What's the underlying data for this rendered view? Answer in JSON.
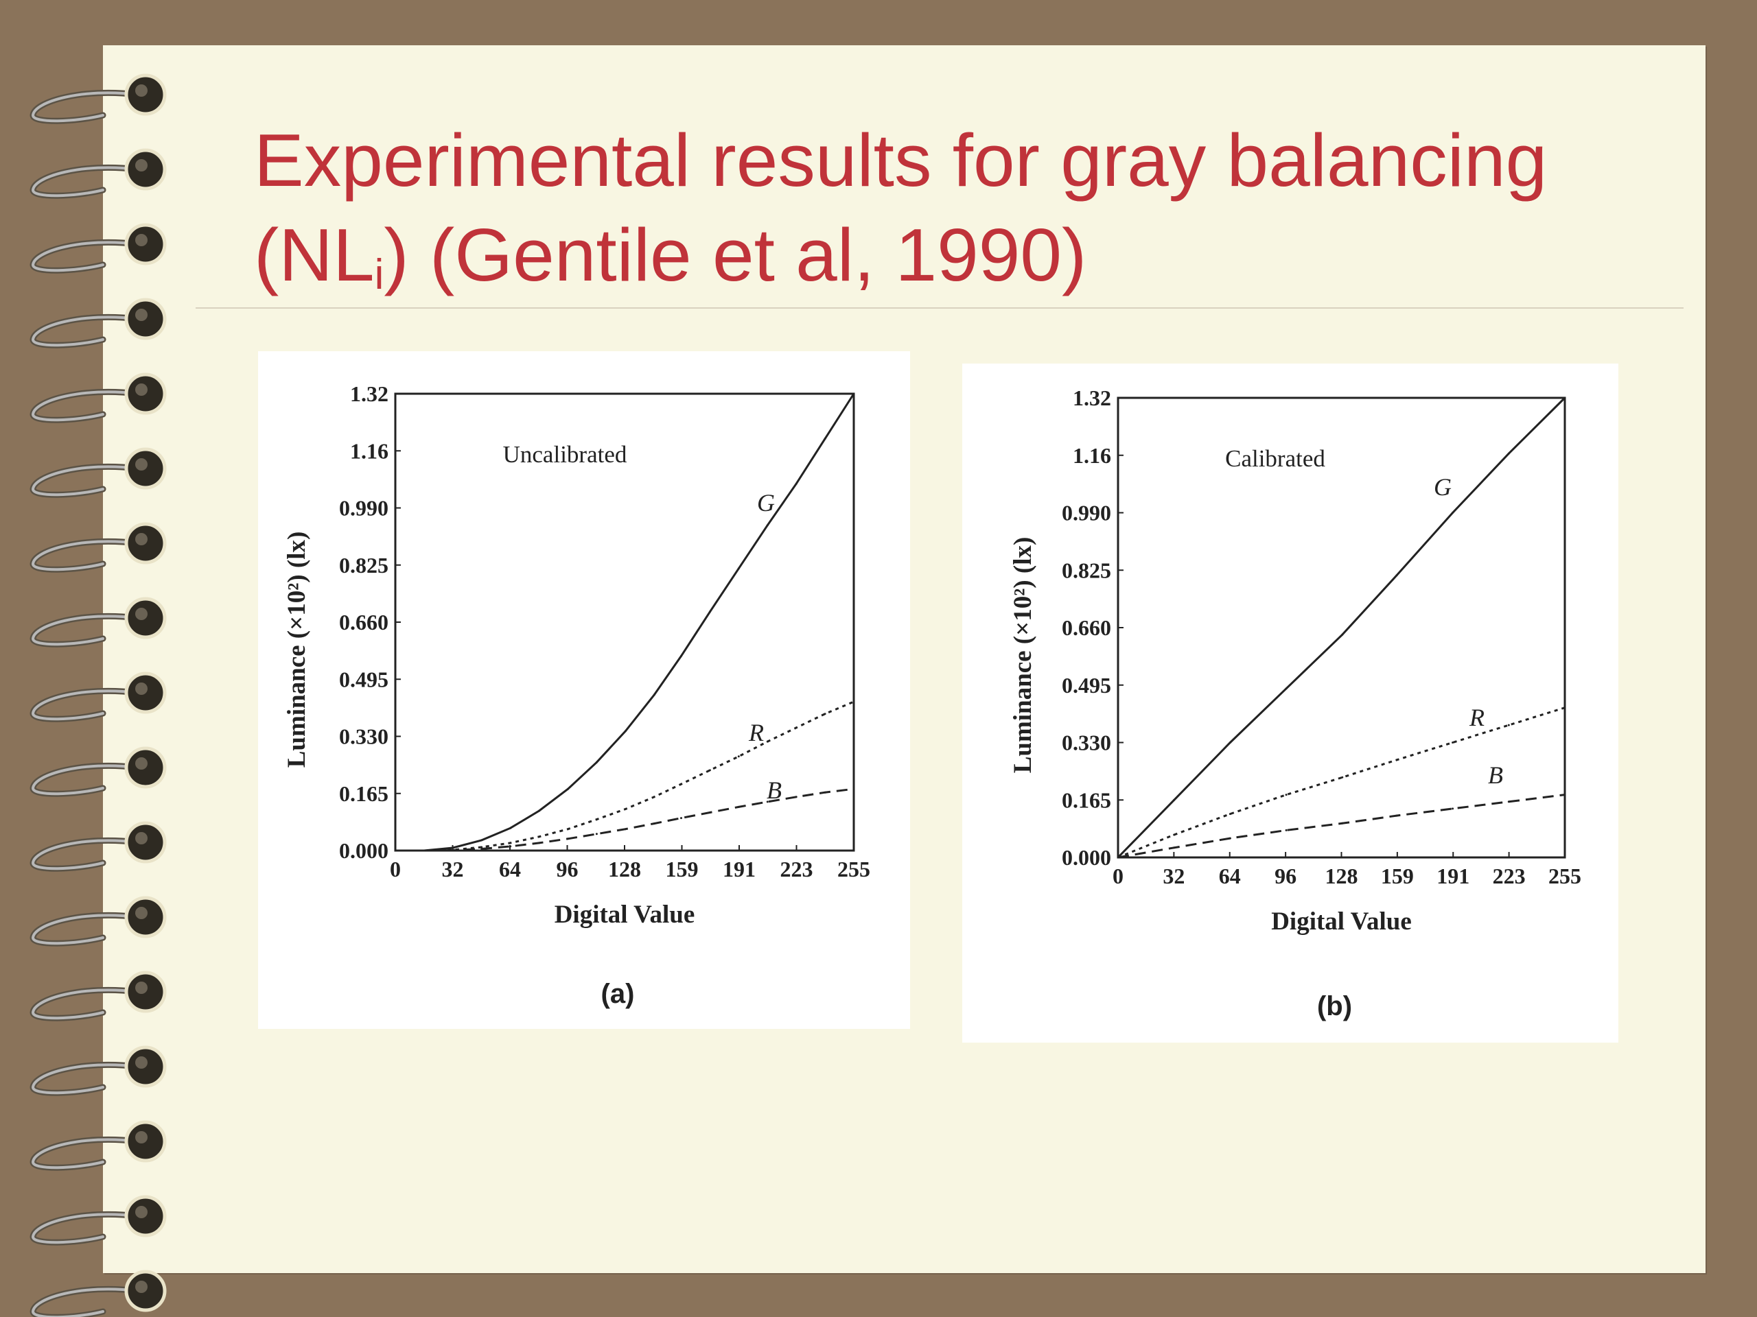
{
  "slide": {
    "title_line1": "Experimental results for gray balancing",
    "title_line2_pre": "(NL",
    "title_line2_sub": "i",
    "title_line2_post": ") (Gentile et al, 1990)"
  },
  "colors": {
    "background": "#8a735a",
    "paper": "#f8f6e2",
    "title": "#c0333a"
  },
  "chart_data": [
    {
      "type": "line",
      "panel": "a",
      "caption": "(a)",
      "inset_label": "Uncalibrated",
      "xlabel": "Digital Value",
      "ylabel": "Luminance (×10²) (lx)",
      "xlim": [
        0,
        255
      ],
      "ylim": [
        0,
        1.32
      ],
      "xticks": [
        "0",
        "32",
        "64",
        "96",
        "128",
        "159",
        "191",
        "223",
        "255"
      ],
      "yticks": [
        "0.000",
        "0.165",
        "0.330",
        "0.495",
        "0.660",
        "0.825",
        "0.990",
        "1.16",
        "1.32"
      ],
      "grid": false,
      "x": [
        0,
        16,
        32,
        48,
        64,
        80,
        96,
        112,
        128,
        144,
        159,
        175,
        191,
        207,
        223,
        239,
        255
      ],
      "series": [
        {
          "name": "G",
          "style": "solid",
          "values": [
            0.0,
            0.0,
            0.008,
            0.03,
            0.065,
            0.115,
            0.178,
            0.255,
            0.345,
            0.45,
            0.562,
            0.69,
            0.815,
            0.94,
            1.06,
            1.19,
            1.32
          ]
        },
        {
          "name": "R",
          "style": "dotted",
          "values": [
            0.0,
            0.0,
            0.002,
            0.01,
            0.022,
            0.04,
            0.062,
            0.09,
            0.12,
            0.155,
            0.192,
            0.232,
            0.272,
            0.315,
            0.355,
            0.395,
            0.43
          ]
        },
        {
          "name": "B",
          "style": "dashed",
          "values": [
            0.0,
            0.0,
            0.001,
            0.005,
            0.012,
            0.022,
            0.034,
            0.048,
            0.062,
            0.078,
            0.094,
            0.11,
            0.126,
            0.141,
            0.155,
            0.168,
            0.178
          ]
        }
      ]
    },
    {
      "type": "line",
      "panel": "b",
      "caption": "(b)",
      "inset_label": "Calibrated",
      "xlabel": "Digital Value",
      "ylabel": "Luminance (×10²) (lx)",
      "xlim": [
        0,
        255
      ],
      "ylim": [
        0,
        1.32
      ],
      "xticks": [
        "0",
        "32",
        "64",
        "96",
        "128",
        "159",
        "191",
        "223",
        "255"
      ],
      "yticks": [
        "0.000",
        "0.165",
        "0.330",
        "0.495",
        "0.660",
        "0.825",
        "0.990",
        "1.16",
        "1.32"
      ],
      "grid": false,
      "x": [
        0,
        32,
        64,
        96,
        128,
        159,
        191,
        223,
        255
      ],
      "series": [
        {
          "name": "G",
          "style": "solid",
          "values": [
            0.0,
            0.165,
            0.33,
            0.485,
            0.64,
            0.81,
            0.99,
            1.16,
            1.32
          ]
        },
        {
          "name": "R",
          "style": "dotted",
          "values": [
            0.0,
            0.065,
            0.125,
            0.18,
            0.23,
            0.28,
            0.33,
            0.38,
            0.43
          ]
        },
        {
          "name": "B",
          "style": "dashed",
          "values": [
            0.0,
            0.028,
            0.055,
            0.078,
            0.098,
            0.12,
            0.14,
            0.16,
            0.18
          ]
        }
      ]
    }
  ]
}
